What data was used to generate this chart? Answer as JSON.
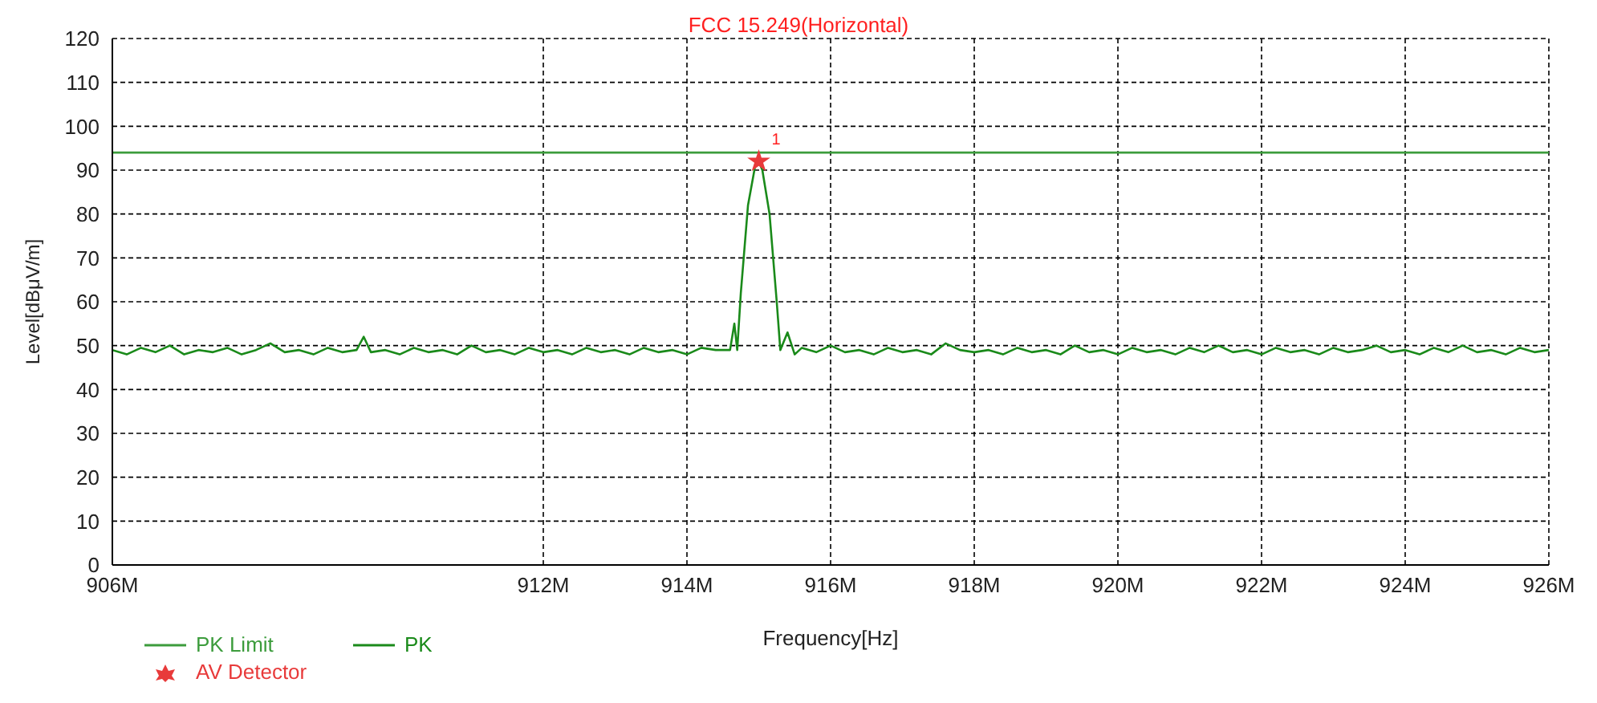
{
  "chart_data": {
    "type": "line",
    "title": "FCC 15.249(Horizontal)",
    "xlabel": "Frequency[Hz]",
    "ylabel": "Level[dBμV/m]",
    "xlim": [
      906,
      926
    ],
    "xticks": [
      {
        "value": 906,
        "label": "906M"
      },
      {
        "value": 912,
        "label": "912M"
      },
      {
        "value": 914,
        "label": "914M"
      },
      {
        "value": 916,
        "label": "916M"
      },
      {
        "value": 918,
        "label": "918M"
      },
      {
        "value": 920,
        "label": "920M"
      },
      {
        "value": 922,
        "label": "922M"
      },
      {
        "value": 924,
        "label": "924M"
      },
      {
        "value": 926,
        "label": "926M"
      }
    ],
    "ylim": [
      0,
      120
    ],
    "yticks": [
      0,
      10,
      20,
      30,
      40,
      50,
      60,
      70,
      80,
      90,
      100,
      110,
      120
    ],
    "grid": true,
    "legend": "bottom left",
    "annotations": [
      {
        "text": "1",
        "x": 915,
        "y": 92
      }
    ],
    "series": [
      {
        "name": "PK Limit",
        "color": "#3c9c3c",
        "x": [
          906,
          926
        ],
        "values": [
          94,
          94
        ]
      },
      {
        "name": "PK",
        "color": "#1a8a1a",
        "x": [
          906,
          906.2,
          906.4,
          906.6,
          906.8,
          907,
          907.2,
          907.4,
          907.6,
          907.8,
          908,
          908.2,
          908.4,
          908.6,
          908.8,
          909,
          909.2,
          909.4,
          909.5,
          909.6,
          909.8,
          910,
          910.2,
          910.4,
          910.6,
          910.8,
          911,
          911.2,
          911.4,
          911.6,
          911.8,
          912,
          912.2,
          912.4,
          912.6,
          912.8,
          913,
          913.2,
          913.4,
          913.6,
          913.8,
          914,
          914.2,
          914.4,
          914.6,
          914.66,
          914.7,
          914.75,
          914.85,
          914.95,
          915,
          915.05,
          915.15,
          915.25,
          915.3,
          915.4,
          915.5,
          915.6,
          915.8,
          916,
          916.2,
          916.4,
          916.6,
          916.8,
          917,
          917.2,
          917.4,
          917.6,
          917.8,
          918,
          918.2,
          918.4,
          918.6,
          918.8,
          919,
          919.2,
          919.4,
          919.6,
          919.8,
          920,
          920.2,
          920.4,
          920.6,
          920.8,
          921,
          921.2,
          921.4,
          921.6,
          921.8,
          922,
          922.2,
          922.4,
          922.6,
          922.8,
          923,
          923.2,
          923.4,
          923.6,
          923.8,
          924,
          924.2,
          924.4,
          924.6,
          924.8,
          925,
          925.2,
          925.4,
          925.6,
          925.8,
          926
        ],
        "values": [
          49,
          48,
          49.5,
          48.5,
          50,
          48,
          49,
          48.5,
          49.5,
          48,
          49,
          50.5,
          48.5,
          49,
          48,
          49.5,
          48.5,
          49,
          52,
          48.5,
          49,
          48,
          49.5,
          48.5,
          49,
          48,
          50,
          48.5,
          49,
          48,
          49.5,
          48.5,
          49,
          48,
          49.5,
          48.5,
          49,
          48,
          49.5,
          48.5,
          49,
          48,
          49.5,
          49,
          49,
          55,
          49,
          62,
          82,
          91,
          92,
          90,
          80,
          60,
          49,
          53,
          48,
          49.5,
          48.5,
          50,
          48.5,
          49,
          48,
          49.5,
          48.5,
          49,
          48,
          50.5,
          49,
          48.5,
          49,
          48,
          49.5,
          48.5,
          49,
          48,
          50,
          48.5,
          49,
          48,
          49.5,
          48.5,
          49,
          48,
          49.5,
          48.5,
          50,
          48.5,
          49,
          48,
          49.5,
          48.5,
          49,
          48,
          49.5,
          48.5,
          49,
          50,
          48.5,
          49,
          48,
          49.5,
          48.5,
          50,
          48.5,
          49,
          48,
          49.5,
          48.5,
          49
        ]
      },
      {
        "name": "AV Detector",
        "type": "scatter",
        "color": "#e83a3a",
        "marker": "star",
        "x": [
          915
        ],
        "values": [
          92
        ]
      }
    ]
  }
}
